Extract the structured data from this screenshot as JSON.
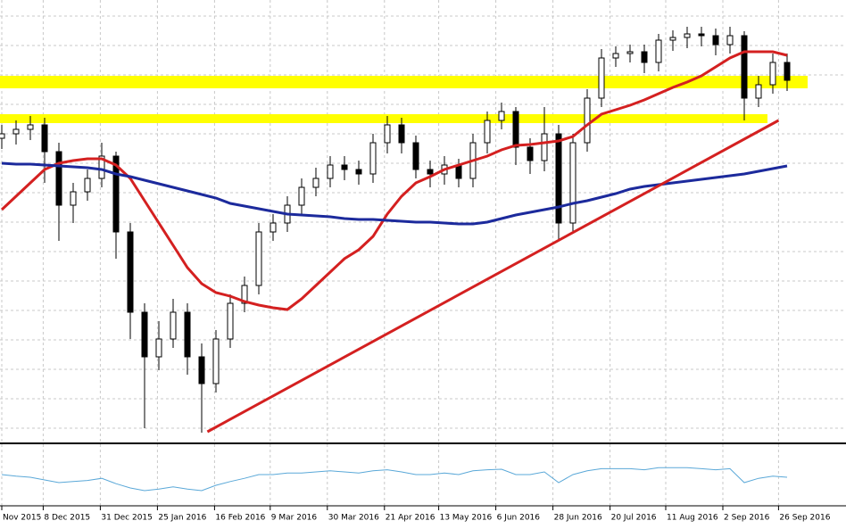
{
  "chart_data": {
    "type": "candlestick",
    "ylim": [
      0,
      500
    ],
    "ygrid": [
      482,
      449,
      416,
      383,
      350,
      317,
      284,
      251,
      218,
      185,
      152,
      119,
      86,
      53,
      20
    ],
    "xticks": [
      {
        "value": 0,
        "label": "Nov 2015"
      },
      {
        "value": 2.9,
        "label": "8 Dec 2015"
      },
      {
        "value": 6.9,
        "label": "31 Dec 2015"
      },
      {
        "value": 10.9,
        "label": "25 Jan 2016"
      },
      {
        "value": 14.9,
        "label": "16 Feb 2016"
      },
      {
        "value": 18.8,
        "label": "9 Mar 2016"
      },
      {
        "value": 22.8,
        "label": "30 Mar 2016"
      },
      {
        "value": 26.8,
        "label": "21 Apr 2016"
      },
      {
        "value": 30.6,
        "label": "13 May 2016"
      },
      {
        "value": 34.6,
        "label": "6 Jun 2016"
      },
      {
        "value": 38.6,
        "label": "28 Jun 2016"
      },
      {
        "value": 42.6,
        "label": "20 Jul 2016"
      },
      {
        "value": 46.5,
        "label": "11 Aug 2016"
      },
      {
        "value": 50.5,
        "label": "2 Sep 2016"
      },
      {
        "value": 54.4,
        "label": "26 Sep 2016"
      }
    ],
    "open": [
      345,
      350,
      355,
      360,
      330,
      270,
      285,
      300,
      325,
      240,
      150,
      100,
      120,
      150,
      100,
      70,
      120,
      160,
      180,
      240,
      250,
      270,
      290,
      300,
      315,
      310,
      305,
      340,
      360,
      340,
      310,
      305,
      315,
      300,
      340,
      365,
      375,
      335,
      320,
      350,
      250,
      340,
      390,
      435,
      440,
      442,
      430,
      455,
      458,
      462,
      460,
      450,
      460,
      390,
      405,
      430
    ],
    "high": [
      360,
      365,
      370,
      368,
      340,
      295,
      310,
      340,
      330,
      250,
      160,
      140,
      165,
      160,
      115,
      130,
      170,
      190,
      250,
      260,
      280,
      300,
      312,
      325,
      325,
      320,
      350,
      370,
      368,
      348,
      320,
      325,
      322,
      350,
      375,
      385,
      380,
      345,
      380,
      360,
      350,
      400,
      445,
      448,
      450,
      450,
      462,
      466,
      470,
      470,
      468,
      470,
      465,
      415,
      440,
      440
    ],
    "low": [
      333,
      338,
      343,
      295,
      230,
      250,
      275,
      290,
      210,
      120,
      20,
      85,
      110,
      80,
      15,
      60,
      110,
      150,
      170,
      230,
      240,
      260,
      280,
      290,
      298,
      293,
      295,
      328,
      328,
      300,
      290,
      293,
      290,
      290,
      328,
      355,
      315,
      305,
      308,
      230,
      240,
      330,
      380,
      425,
      430,
      418,
      420,
      443,
      446,
      448,
      438,
      440,
      365,
      380,
      395,
      398
    ],
    "close": [
      350,
      355,
      360,
      330,
      270,
      285,
      300,
      325,
      240,
      150,
      100,
      120,
      150,
      100,
      70,
      120,
      160,
      180,
      240,
      250,
      270,
      290,
      300,
      315,
      310,
      305,
      340,
      360,
      340,
      310,
      305,
      315,
      300,
      340,
      365,
      375,
      335,
      320,
      350,
      250,
      340,
      390,
      435,
      440,
      442,
      430,
      455,
      458,
      462,
      460,
      450,
      460,
      390,
      405,
      430,
      410
    ],
    "series": [
      {
        "color": "#d42020",
        "values": [
          265,
          280,
          295,
          310,
          317,
          320,
          322,
          322,
          315,
          300,
          275,
          250,
          225,
          200,
          182,
          172,
          168,
          162,
          158,
          155,
          153,
          165,
          180,
          195,
          210,
          220,
          235,
          260,
          280,
          295,
          302,
          310,
          315,
          320,
          325,
          332,
          337,
          338,
          340,
          342,
          347,
          360,
          372,
          377,
          382,
          388,
          395,
          402,
          408,
          415,
          425,
          435,
          442,
          442,
          442,
          438
        ]
      },
      {
        "color": "#1c2a9c",
        "values": [
          317,
          316,
          316,
          315,
          314,
          313,
          312,
          310,
          305,
          302,
          298,
          294,
          290,
          286,
          282,
          278,
          272,
          269,
          266,
          263,
          260,
          259,
          258,
          257,
          255,
          254,
          254,
          253,
          252,
          251,
          251,
          250,
          249,
          249,
          251,
          255,
          259,
          262,
          265,
          268,
          272,
          275,
          279,
          283,
          288,
          291,
          293,
          295,
          297,
          299,
          301,
          303,
          305,
          308,
          311,
          314
        ]
      }
    ],
    "levels": [
      408,
      367
    ],
    "level_color": "#ffff00",
    "trendline": {
      "x": [
        14.4,
        54.4
      ],
      "y": [
        16,
        365
      ],
      "color": "#d42020"
    },
    "indicator": {
      "color": "#5aa8d8",
      "ylim": [
        0,
        100
      ],
      "values": [
        55,
        52,
        50,
        45,
        40,
        42,
        44,
        48,
        38,
        30,
        25,
        28,
        32,
        28,
        25,
        35,
        42,
        48,
        55,
        55,
        58,
        58,
        60,
        62,
        60,
        58,
        62,
        64,
        60,
        55,
        55,
        58,
        55,
        62,
        64,
        65,
        55,
        55,
        60,
        40,
        55,
        62,
        66,
        66,
        66,
        64,
        68,
        68,
        68,
        66,
        64,
        66,
        40,
        48,
        52,
        50
      ]
    }
  }
}
